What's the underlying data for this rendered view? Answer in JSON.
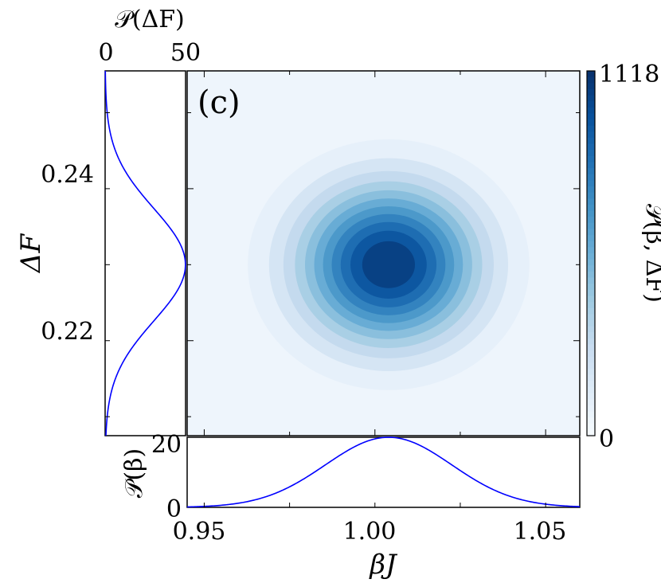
{
  "chart_data": [
    {
      "id": "main",
      "type": "heatmap",
      "panel_label": "(c)",
      "xlabel": "βJ",
      "ylabel": "ΔF",
      "xlim": [
        0.945,
        1.06
      ],
      "ylim": [
        0.2075,
        0.2555
      ],
      "xticks": [
        0.95,
        1.0,
        1.05
      ],
      "xtick_labels": [
        "0.95",
        "1.00",
        "1.05"
      ],
      "yticks": [
        0.22,
        0.24
      ],
      "ytick_labels": [
        "0.22",
        "0.24"
      ],
      "distribution": {
        "kind": "bivariate-gaussian",
        "peak_x": 1.004,
        "peak_y": 0.23,
        "std_x": 0.0185,
        "std_y": 0.0074,
        "peak_value": 1118,
        "contour_levels": 11
      },
      "colorbar": {
        "label": "𝒫(β, ΔF)",
        "min": 0,
        "max": 1118,
        "tick_labels": [
          "0",
          "1118"
        ],
        "colormap": [
          "#f7fbff",
          "#deebf7",
          "#c6dbef",
          "#9ecae1",
          "#6baed6",
          "#4292c6",
          "#2171b5",
          "#08519c",
          "#08306b"
        ]
      }
    },
    {
      "id": "marginal-dF",
      "type": "line",
      "xlabel": "𝒫(ΔF)",
      "xlim": [
        0,
        54
      ],
      "xtick_labels": [
        "0",
        "50"
      ],
      "series": [
        {
          "color": "#0000ff",
          "mean": 0.23,
          "std": 0.0074,
          "peak": 53.9
        }
      ]
    },
    {
      "id": "marginal-beta",
      "type": "line",
      "ylabel": "𝒫(β)",
      "ylim": [
        0,
        21.6
      ],
      "ytick_labels": [
        "0",
        "20"
      ],
      "series": [
        {
          "color": "#0000ff",
          "mean": 1.004,
          "std": 0.0185,
          "peak": 21.6
        }
      ]
    }
  ]
}
